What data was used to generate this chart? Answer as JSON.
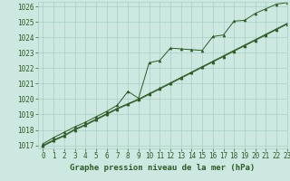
{
  "xlabel": "Graphe pression niveau de la mer (hPa)",
  "xlim": [
    -0.5,
    23
  ],
  "ylim": [
    1016.8,
    1026.3
  ],
  "yticks": [
    1017,
    1018,
    1019,
    1020,
    1021,
    1022,
    1023,
    1024,
    1025,
    1026
  ],
  "xticks": [
    0,
    1,
    2,
    3,
    4,
    5,
    6,
    7,
    8,
    9,
    10,
    11,
    12,
    13,
    14,
    15,
    16,
    17,
    18,
    19,
    20,
    21,
    22,
    23
  ],
  "background_color": "#cce8e0",
  "grid_color": "#a8cfc4",
  "line_color": "#2d5a27",
  "line1_x": [
    0,
    1,
    2,
    3,
    4,
    5,
    6,
    7,
    8,
    9,
    10,
    11,
    12,
    13,
    14,
    15,
    16,
    17,
    18,
    19,
    20,
    21,
    22,
    23
  ],
  "line1_y": [
    1017.1,
    1017.5,
    1017.85,
    1018.2,
    1018.5,
    1018.85,
    1019.2,
    1019.6,
    1020.5,
    1020.05,
    1022.35,
    1022.5,
    1023.3,
    1023.25,
    1023.2,
    1023.15,
    1024.05,
    1024.15,
    1025.05,
    1025.1,
    1025.55,
    1025.85,
    1026.15,
    1026.25
  ],
  "line2_x": [
    0,
    1,
    2,
    3,
    4,
    5,
    6,
    7,
    8,
    9,
    10,
    11,
    12,
    13,
    14,
    15,
    16,
    17,
    18,
    19,
    20,
    21,
    22,
    23
  ],
  "line2_y": [
    1017.0,
    1017.35,
    1017.65,
    1018.05,
    1018.35,
    1018.7,
    1019.05,
    1019.4,
    1019.7,
    1020.0,
    1020.35,
    1020.7,
    1021.05,
    1021.4,
    1021.75,
    1022.1,
    1022.45,
    1022.8,
    1023.15,
    1023.5,
    1023.85,
    1024.2,
    1024.55,
    1024.9
  ],
  "line3_x": [
    0,
    1,
    2,
    3,
    4,
    5,
    6,
    7,
    8,
    9,
    10,
    11,
    12,
    13,
    14,
    15,
    16,
    17,
    18,
    19,
    20,
    21,
    22,
    23
  ],
  "line3_y": [
    1016.95,
    1017.3,
    1017.6,
    1018.0,
    1018.3,
    1018.65,
    1019.0,
    1019.35,
    1019.65,
    1019.95,
    1020.3,
    1020.65,
    1021.0,
    1021.35,
    1021.7,
    1022.05,
    1022.4,
    1022.75,
    1023.1,
    1023.45,
    1023.8,
    1024.15,
    1024.5,
    1024.85
  ],
  "tick_fontsize": 5.5,
  "label_fontsize": 6.5,
  "label_color": "#2d5a27",
  "tick_color": "#2d5a27"
}
